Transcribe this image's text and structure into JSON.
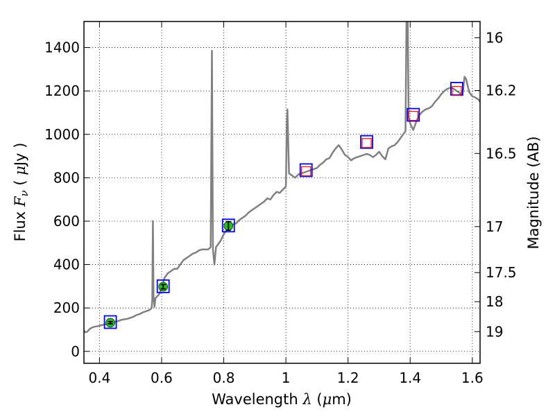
{
  "chart_data": {
    "type": "line",
    "xlabel_prefix": "Wavelength  ",
    "xlabel_symbol": "λ",
    "xlabel_unit": "(",
    "xlabel_unit_symbol": "μ",
    "xlabel_unit_suffix": "m)",
    "ylabel_prefix": "Flux  ",
    "ylabel_symbol": "F",
    "ylabel_subscript": "ν",
    "ylabel_unit_open": "  (  ",
    "ylabel_unit_symbol": "μ",
    "ylabel_unit_suffix": "Jy )",
    "y2label": "Magnitude (AB)",
    "xlim": [
      0.35,
      1.625
    ],
    "ylim": [
      -55,
      1520
    ],
    "grid": true,
    "x_ticks": [
      {
        "value": 0.4,
        "label": "0.4"
      },
      {
        "value": 0.6,
        "label": "0.6"
      },
      {
        "value": 0.8,
        "label": "0.8"
      },
      {
        "value": 1.0,
        "label": "1"
      },
      {
        "value": 1.2,
        "label": "1.2"
      },
      {
        "value": 1.4,
        "label": "1.4"
      },
      {
        "value": 1.6,
        "label": "1.6"
      }
    ],
    "y_ticks": [
      {
        "value": 0,
        "label": "0"
      },
      {
        "value": 200,
        "label": "200"
      },
      {
        "value": 400,
        "label": "400"
      },
      {
        "value": 600,
        "label": "600"
      },
      {
        "value": 800,
        "label": "800"
      },
      {
        "value": 1000,
        "label": "1000"
      },
      {
        "value": 1200,
        "label": "1200"
      },
      {
        "value": 1400,
        "label": "1400"
      }
    ],
    "y2_ticks": [
      {
        "label": "16",
        "flux": 1445
      },
      {
        "label": "16.2",
        "flux": 1202
      },
      {
        "label": "16.5",
        "flux": 912
      },
      {
        "label": "17",
        "flux": 575
      },
      {
        "label": "17.5",
        "flux": 363
      },
      {
        "label": "18",
        "flux": 229
      },
      {
        "label": "19",
        "flux": 91
      }
    ],
    "series": [
      {
        "type": "spectrum",
        "color": "#808080",
        "points": [
          [
            0.35,
            95
          ],
          [
            0.355,
            88
          ],
          [
            0.36,
            90
          ],
          [
            0.37,
            105
          ],
          [
            0.38,
            112
          ],
          [
            0.39,
            115
          ],
          [
            0.4,
            118
          ],
          [
            0.41,
            122
          ],
          [
            0.42,
            125
          ],
          [
            0.43,
            130
          ],
          [
            0.44,
            132
          ],
          [
            0.45,
            136
          ],
          [
            0.46,
            140
          ],
          [
            0.47,
            145
          ],
          [
            0.48,
            148
          ],
          [
            0.49,
            150
          ],
          [
            0.5,
            155
          ],
          [
            0.51,
            160
          ],
          [
            0.52,
            168
          ],
          [
            0.53,
            172
          ],
          [
            0.54,
            180
          ],
          [
            0.55,
            185
          ],
          [
            0.56,
            190
          ],
          [
            0.565,
            195
          ],
          [
            0.568,
            200
          ],
          [
            0.57,
            240
          ],
          [
            0.572,
            600
          ],
          [
            0.574,
            250
          ],
          [
            0.577,
            205
          ],
          [
            0.58,
            245
          ],
          [
            0.59,
            260
          ],
          [
            0.595,
            270
          ],
          [
            0.6,
            300
          ],
          [
            0.61,
            340
          ],
          [
            0.62,
            360
          ],
          [
            0.63,
            370
          ],
          [
            0.64,
            380
          ],
          [
            0.65,
            380
          ],
          [
            0.66,
            400
          ],
          [
            0.67,
            420
          ],
          [
            0.68,
            430
          ],
          [
            0.69,
            440
          ],
          [
            0.7,
            450
          ],
          [
            0.71,
            455
          ],
          [
            0.72,
            465
          ],
          [
            0.73,
            470
          ],
          [
            0.74,
            470
          ],
          [
            0.75,
            470
          ],
          [
            0.758,
            480
          ],
          [
            0.762,
            1385
          ],
          [
            0.765,
            470
          ],
          [
            0.77,
            400
          ],
          [
            0.775,
            480
          ],
          [
            0.78,
            490
          ],
          [
            0.79,
            510
          ],
          [
            0.8,
            540
          ],
          [
            0.81,
            560
          ],
          [
            0.82,
            580
          ],
          [
            0.83,
            585
          ],
          [
            0.84,
            590
          ],
          [
            0.85,
            605
          ],
          [
            0.86,
            615
          ],
          [
            0.87,
            625
          ],
          [
            0.88,
            640
          ],
          [
            0.89,
            650
          ],
          [
            0.9,
            660
          ],
          [
            0.91,
            670
          ],
          [
            0.92,
            680
          ],
          [
            0.93,
            690
          ],
          [
            0.94,
            705
          ],
          [
            0.95,
            700
          ],
          [
            0.96,
            720
          ],
          [
            0.97,
            735
          ],
          [
            0.98,
            730
          ],
          [
            0.99,
            745
          ],
          [
            1.0,
            760
          ],
          [
            1.003,
            1040
          ],
          [
            1.005,
            1115
          ],
          [
            1.007,
            1000
          ],
          [
            1.01,
            820
          ],
          [
            1.02,
            810
          ],
          [
            1.03,
            800
          ],
          [
            1.04,
            815
          ],
          [
            1.05,
            820
          ],
          [
            1.06,
            825
          ],
          [
            1.07,
            830
          ],
          [
            1.08,
            835
          ],
          [
            1.09,
            840
          ],
          [
            1.1,
            845
          ],
          [
            1.11,
            860
          ],
          [
            1.12,
            870
          ],
          [
            1.13,
            885
          ],
          [
            1.14,
            890
          ],
          [
            1.15,
            915
          ],
          [
            1.16,
            935
          ],
          [
            1.17,
            950
          ],
          [
            1.18,
            930
          ],
          [
            1.19,
            905
          ],
          [
            1.2,
            895
          ],
          [
            1.21,
            880
          ],
          [
            1.22,
            890
          ],
          [
            1.23,
            895
          ],
          [
            1.24,
            900
          ],
          [
            1.25,
            905
          ],
          [
            1.26,
            910
          ],
          [
            1.27,
            905
          ],
          [
            1.28,
            895
          ],
          [
            1.29,
            905
          ],
          [
            1.3,
            920
          ],
          [
            1.31,
            900
          ],
          [
            1.32,
            885
          ],
          [
            1.33,
            935
          ],
          [
            1.34,
            945
          ],
          [
            1.35,
            950
          ],
          [
            1.36,
            965
          ],
          [
            1.37,
            985
          ],
          [
            1.38,
            1005
          ],
          [
            1.385,
            1015
          ],
          [
            1.388,
            1520
          ],
          [
            1.392,
            1520
          ],
          [
            1.395,
            1080
          ],
          [
            1.4,
            1050
          ],
          [
            1.41,
            1020
          ],
          [
            1.42,
            1060
          ],
          [
            1.43,
            1090
          ],
          [
            1.44,
            1105
          ],
          [
            1.45,
            1115
          ],
          [
            1.46,
            1120
          ],
          [
            1.47,
            1130
          ],
          [
            1.48,
            1150
          ],
          [
            1.49,
            1165
          ],
          [
            1.5,
            1185
          ],
          [
            1.51,
            1200
          ],
          [
            1.52,
            1210
          ],
          [
            1.53,
            1215
          ],
          [
            1.54,
            1210
          ],
          [
            1.55,
            1200
          ],
          [
            1.56,
            1190
          ],
          [
            1.565,
            1180
          ],
          [
            1.57,
            1200
          ],
          [
            1.575,
            1265
          ],
          [
            1.58,
            1255
          ],
          [
            1.59,
            1195
          ],
          [
            1.6,
            1175
          ],
          [
            1.61,
            1170
          ],
          [
            1.62,
            1160
          ],
          [
            1.625,
            1150
          ]
        ]
      },
      {
        "type": "model_photometry",
        "marker": "open-square",
        "color": "#0000ff",
        "points": [
          [
            0.435,
            135
          ],
          [
            0.605,
            300
          ],
          [
            0.815,
            580
          ],
          [
            1.065,
            835
          ],
          [
            1.26,
            965
          ],
          [
            1.41,
            1090
          ],
          [
            1.55,
            1210
          ]
        ]
      },
      {
        "type": "observed_photometry",
        "marker": "open-square",
        "color": "#ff0000",
        "points": [
          [
            1.065,
            830
          ],
          [
            1.26,
            960
          ],
          [
            1.41,
            1085
          ],
          [
            1.55,
            1200
          ]
        ]
      },
      {
        "type": "observed_photometry_errorbars",
        "marker": "circle",
        "color": "#22bb22",
        "points": [
          {
            "x": 0.435,
            "y": 132,
            "err": 5
          },
          {
            "x": 0.605,
            "y": 298,
            "err": 10
          },
          {
            "x": 0.815,
            "y": 578,
            "err": 20
          }
        ]
      }
    ]
  }
}
